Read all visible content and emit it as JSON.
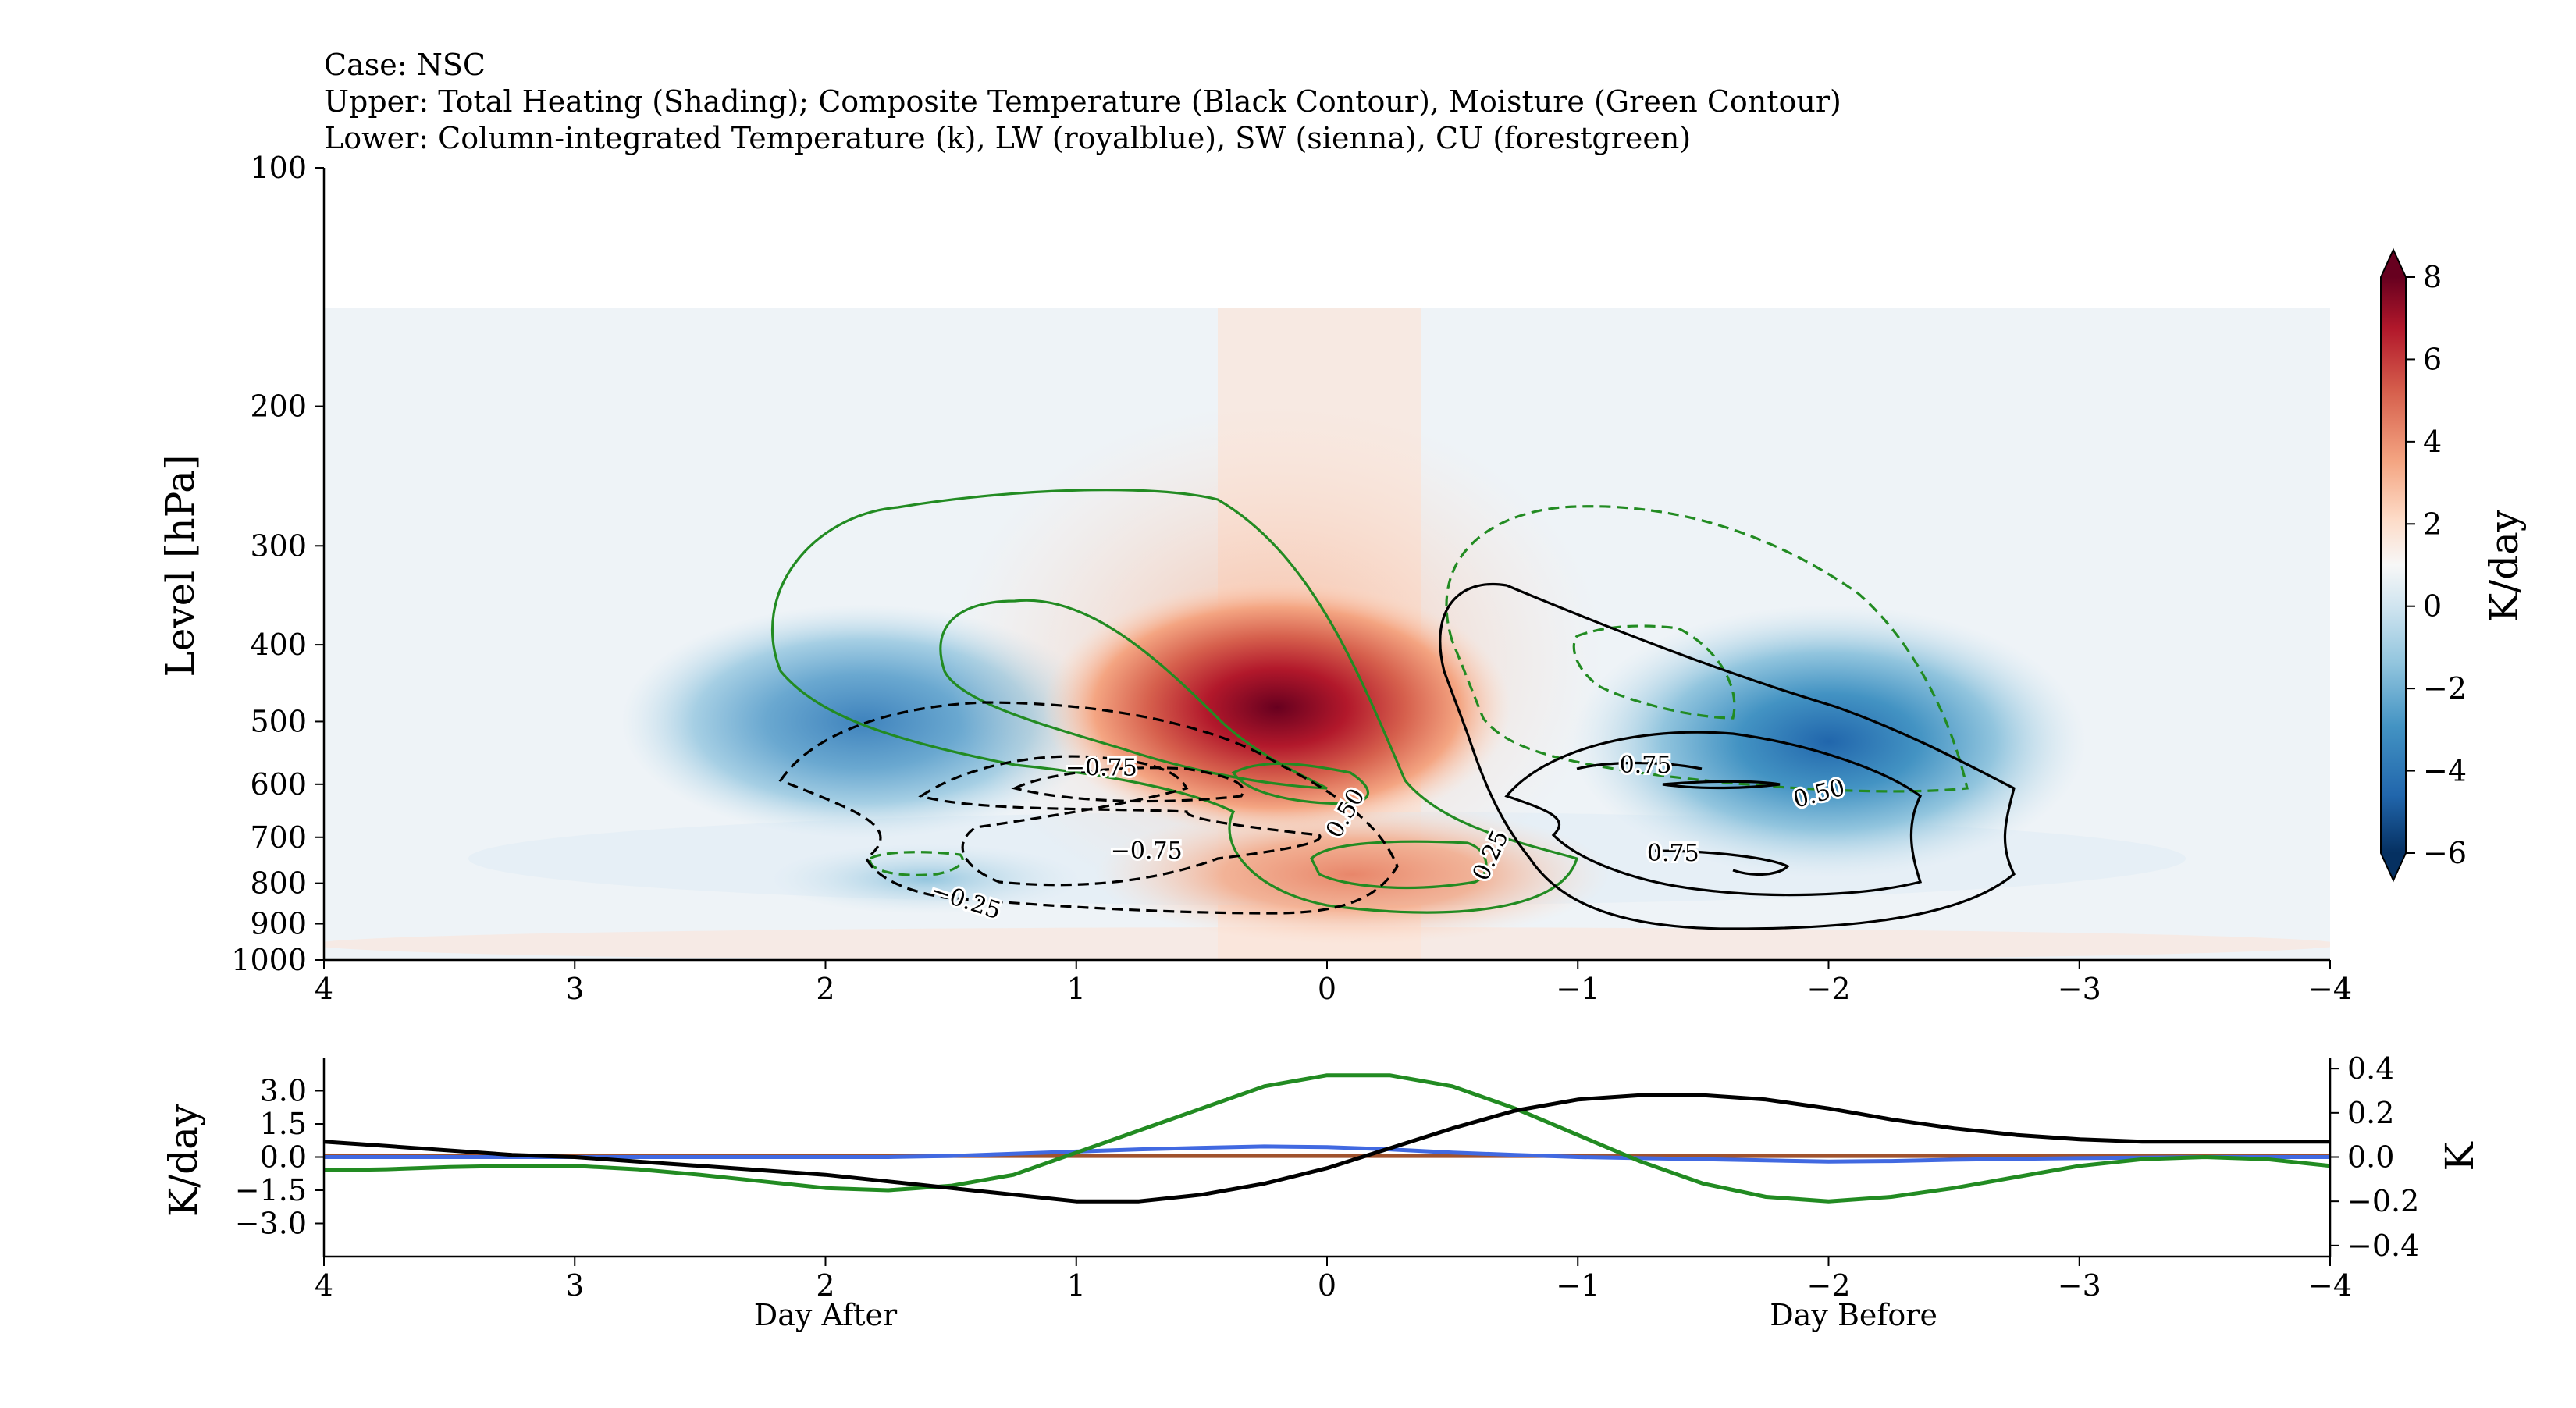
{
  "title_lines": [
    "Case: NSC",
    "Upper: Total Heating (Shading); Composite Temperature (Black Contour), Moisture (Green Contour)",
    "Lower: Column-integrated Temperature (k), LW (royalblue), SW (sienna), CU (forestgreen)"
  ],
  "chart_data": [
    {
      "type": "heatmap",
      "panel": "upper",
      "ylabel": "Level [hPa]",
      "colorbar_label": "K/day",
      "x_range": [
        4,
        -4
      ],
      "y_range": [
        1000,
        100
      ],
      "y_scale": "log",
      "xticks": [
        4,
        3,
        2,
        1,
        0,
        -1,
        -2,
        -3,
        -4
      ],
      "xtick_labels": [
        "4",
        "3",
        "2",
        "1",
        "0",
        "−1",
        "−2",
        "−3",
        "−4"
      ],
      "yticks": [
        100,
        200,
        300,
        400,
        500,
        600,
        700,
        800,
        900,
        1000
      ],
      "ytick_labels": [
        "100",
        "200",
        "300",
        "400",
        "500",
        "600",
        "700",
        "800",
        "900",
        "1000"
      ],
      "colorbar_range": [
        -6,
        8
      ],
      "colorbar_ticks": [
        8,
        6,
        4,
        2,
        0,
        -2,
        -4,
        -6
      ],
      "colorbar_tick_labels": [
        "8",
        "6",
        "4",
        "2",
        "0",
        "−2",
        "−4",
        "−6"
      ],
      "data_top_hPa": 150,
      "heating_features": [
        {
          "name": "heating-core",
          "x": 0.2,
          "p": 480,
          "value": 7.8
        },
        {
          "name": "heating-low",
          "x": -0.1,
          "p": 780,
          "value": 2.5
        },
        {
          "name": "cooling-right",
          "x": -2.0,
          "p": 530,
          "value": -3.8
        },
        {
          "name": "cooling-left",
          "x": 1.85,
          "p": 500,
          "value": -2.6
        },
        {
          "name": "cooling-left-low",
          "x": 1.6,
          "p": 790,
          "value": -1.2
        }
      ],
      "contour_labels": [
        {
          "text": "−0.75",
          "x": 0.9,
          "p": 585,
          "rotate": 0
        },
        {
          "text": "−0.75",
          "x": 0.72,
          "p": 745,
          "rotate": 0
        },
        {
          "text": "−0.25",
          "x": 1.45,
          "p": 860,
          "rotate": 18
        },
        {
          "text": "0.50",
          "x": -0.1,
          "p": 660,
          "rotate": -60
        },
        {
          "text": "0.25",
          "x": -0.68,
          "p": 745,
          "rotate": -65
        },
        {
          "text": "0.75",
          "x": -1.27,
          "p": 580,
          "rotate": 0
        },
        {
          "text": "0.75",
          "x": -1.38,
          "p": 750,
          "rotate": 0
        },
        {
          "text": "0.50",
          "x": -1.97,
          "p": 630,
          "rotate": -15
        }
      ]
    },
    {
      "type": "line",
      "panel": "lower",
      "ylabel_left": "K/day",
      "ylabel_right": "K",
      "x_range": [
        4,
        -4
      ],
      "ylim_left": [
        -4.5,
        4.5
      ],
      "ylim_right": [
        -0.45,
        0.45
      ],
      "yticks_left": [
        3.0,
        1.5,
        0.0,
        -1.5,
        -3.0
      ],
      "ytick_labels_left": [
        "3.0",
        "1.5",
        "0.0",
        "−1.5",
        "−3.0"
      ],
      "yticks_right": [
        0.4,
        0.2,
        0.0,
        -0.2,
        -0.4
      ],
      "ytick_labels_right": [
        "0.4",
        "0.2",
        "0.0",
        "−0.2",
        "−0.4"
      ],
      "xticks": [
        4,
        3,
        2,
        1,
        0,
        -1,
        -2,
        -3,
        -4
      ],
      "xtick_labels": [
        "4",
        "3",
        "2",
        "1",
        "0",
        "−1",
        "−2",
        "−3",
        "−4"
      ],
      "annotations": [
        {
          "text": "Day After",
          "x": 2.0
        },
        {
          "text": "Day Before",
          "x": -2.1
        }
      ],
      "x": [
        4,
        3.75,
        3.5,
        3.25,
        3,
        2.75,
        2.5,
        2.25,
        2,
        1.75,
        1.5,
        1.25,
        1,
        0.75,
        0.5,
        0.25,
        0,
        -0.25,
        -0.5,
        -0.75,
        -1,
        -1.25,
        -1.5,
        -1.75,
        -2,
        -2.25,
        -2.5,
        -2.75,
        -3,
        -3.25,
        -3.5,
        -3.75,
        -4
      ],
      "series": [
        {
          "name": "Column-integrated Temperature",
          "axis": "right",
          "color": "#000000",
          "values": [
            0.07,
            0.05,
            0.03,
            0.01,
            0.0,
            -0.02,
            -0.04,
            -0.06,
            -0.08,
            -0.11,
            -0.14,
            -0.17,
            -0.2,
            -0.2,
            -0.17,
            -0.12,
            -0.05,
            0.04,
            0.13,
            0.21,
            0.26,
            0.28,
            0.28,
            0.26,
            0.22,
            0.17,
            0.13,
            0.1,
            0.08,
            0.07,
            0.07,
            0.07,
            0.07
          ]
        },
        {
          "name": "LW",
          "axis": "left",
          "color": "#4169e1",
          "values": [
            0.0,
            0.0,
            0.0,
            0.0,
            0.0,
            0.0,
            0.0,
            0.0,
            0.0,
            0.0,
            0.05,
            0.15,
            0.25,
            0.35,
            0.42,
            0.48,
            0.45,
            0.35,
            0.2,
            0.1,
            0.0,
            -0.05,
            -0.1,
            -0.15,
            -0.2,
            -0.18,
            -0.12,
            -0.08,
            -0.05,
            -0.03,
            0.0,
            0.0,
            0.0
          ]
        },
        {
          "name": "SW",
          "axis": "left",
          "color": "#a0522d",
          "values": [
            0.05,
            0.05,
            0.05,
            0.05,
            0.05,
            0.05,
            0.05,
            0.05,
            0.05,
            0.05,
            0.05,
            0.05,
            0.05,
            0.05,
            0.05,
            0.05,
            0.05,
            0.05,
            0.05,
            0.05,
            0.05,
            0.05,
            0.05,
            0.05,
            0.05,
            0.05,
            0.05,
            0.05,
            0.05,
            0.05,
            0.05,
            0.05,
            0.05
          ]
        },
        {
          "name": "CU",
          "axis": "left",
          "color": "#228b22",
          "values": [
            -0.6,
            -0.55,
            -0.45,
            -0.4,
            -0.4,
            -0.55,
            -0.8,
            -1.1,
            -1.4,
            -1.5,
            -1.3,
            -0.8,
            0.2,
            1.2,
            2.2,
            3.2,
            3.7,
            3.7,
            3.2,
            2.2,
            1.0,
            -0.2,
            -1.2,
            -1.8,
            -2.0,
            -1.8,
            -1.4,
            -0.9,
            -0.4,
            -0.1,
            0.0,
            -0.1,
            -0.4
          ]
        }
      ]
    }
  ]
}
